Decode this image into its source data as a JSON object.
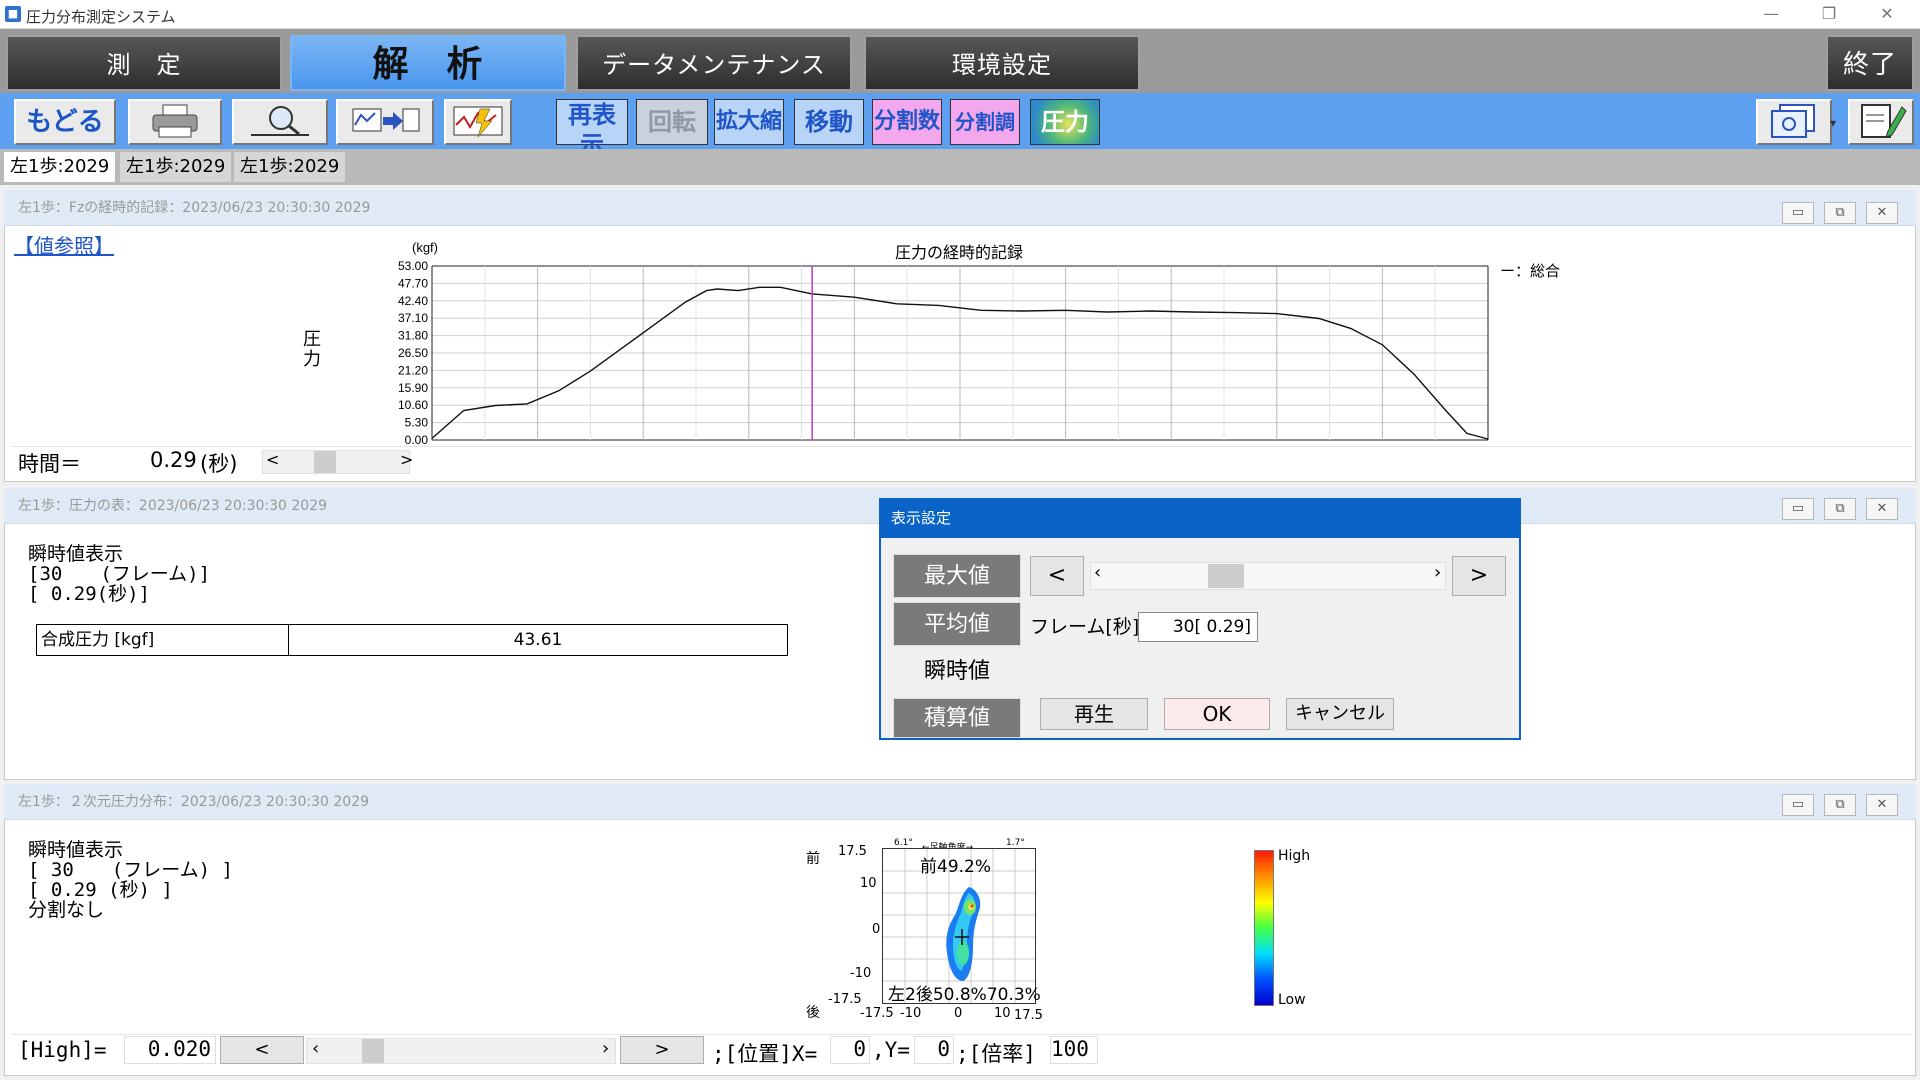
{
  "window": {
    "title": "圧力分布測定システム",
    "icon": "app-icon",
    "controls": [
      "—",
      "❐",
      "✕"
    ]
  },
  "main_tabs": [
    {
      "label": "測　定"
    },
    {
      "label": "解　析"
    },
    {
      "label": "データメンテナンス"
    },
    {
      "label": "環境設定"
    }
  ],
  "exit_label": "終了",
  "toolbar": {
    "back_label": "もどる",
    "redraw_label": "再表示",
    "rotate_label": "回転",
    "zoom_label": "拡大縮小",
    "move_label": "移動",
    "divisions_label": "分割数",
    "division_adjust_label": "分割調整",
    "pressure_label": "圧力"
  },
  "subtabs": [
    "左1歩:2029",
    "左1歩:2029",
    "左1歩:2029"
  ],
  "panel1": {
    "title": "左1歩：Fzの経時的記録：2023/06/23 20:30:30 2029",
    "value_ref_link": "【値参照】",
    "ylabel": "圧力",
    "time_label": "時間＝",
    "time_value": "0.29",
    "time_unit": "(秒)",
    "scroll_left": "<",
    "scroll_right": ">"
  },
  "chart_data": {
    "type": "line",
    "title": "圧力の経時的記録",
    "ylabel": "圧力",
    "yunit": "(kgf)",
    "ylim": [
      0,
      53
    ],
    "yticks": [
      "53.00",
      "47.70",
      "42.40",
      "37.10",
      "31.80",
      "26.50",
      "21.20",
      "15.90",
      "10.60",
      "5.30",
      "0.00"
    ],
    "xlim": [
      0,
      1.0
    ],
    "grid": true,
    "legend": "ー：総合",
    "legend_position": "right",
    "cursor_x": 0.36,
    "series": [
      {
        "name": "総合",
        "x": [
          0.0,
          0.03,
          0.06,
          0.09,
          0.12,
          0.15,
          0.18,
          0.21,
          0.24,
          0.26,
          0.27,
          0.29,
          0.31,
          0.33,
          0.36,
          0.4,
          0.44,
          0.48,
          0.52,
          0.56,
          0.6,
          0.64,
          0.68,
          0.72,
          0.76,
          0.8,
          0.84,
          0.87,
          0.9,
          0.93,
          0.96,
          0.98,
          1.0
        ],
        "y": [
          0.5,
          9,
          10.5,
          11,
          15,
          21,
          28,
          35,
          42,
          45.5,
          46,
          45.5,
          46.5,
          46.5,
          44.5,
          43.5,
          41.5,
          41,
          39.5,
          39.3,
          39.5,
          39,
          39.3,
          39,
          38.8,
          38.5,
          37,
          34,
          29,
          20,
          9,
          2,
          0.3
        ]
      }
    ]
  },
  "panel2": {
    "title": "左1歩：圧力の表：2023/06/23 20:30:30 2029",
    "lines": [
      "瞬時値表示",
      "[30　　(フレーム)]",
      "[ 0.29(秒)]"
    ],
    "table_label": "合成圧力 [kgf]",
    "table_value": "43.61"
  },
  "dialog": {
    "title": "表示設定",
    "max_label": "最大値",
    "avg_label": "平均値",
    "inst_label": "瞬時値",
    "accum_label": "積算値",
    "prev_btn": "<",
    "next_btn": ">",
    "scroll_left": "‹",
    "scroll_right": "›",
    "frame_label": "フレーム[秒]",
    "frame_value": "30[ 0.29]",
    "play_label": "再生",
    "ok_label": "OK",
    "cancel_label": "キャンセル"
  },
  "panel3": {
    "title": "左1歩：２次元圧力分布：2023/06/23 20:30:30 2029",
    "lines": [
      "瞬時値表示",
      "[ 30　　(フレーム) ]",
      "[ 0.29 (秒) ]",
      "分割なし"
    ],
    "front_label": "前",
    "back_label": "後",
    "y_ticks": [
      "17.5",
      "10",
      "0",
      "-10",
      "-17.5"
    ],
    "x_ticks": [
      "-17.5",
      "-10",
      "0",
      "10",
      "17.5"
    ],
    "top_text_left": "6.1°",
    "top_text_center": "←足軸角度→",
    "top_text_right": "1.7°",
    "front_pct": "前49.2%",
    "bottom_text": "左2後50.8%70.3%",
    "legend_high": "High",
    "legend_low": "Low",
    "high_label": "[High]=",
    "high_value": "0.020",
    "btn_prev": "<",
    "btn_next": ">",
    "scroll_left": "‹",
    "scroll_right": "›",
    "pos_label": ";[位置]X=",
    "pos_x": "0",
    "pos_y_label": ",Y=",
    "pos_y": "0",
    "mag_label": ";[倍率]",
    "mag_value": "100"
  }
}
